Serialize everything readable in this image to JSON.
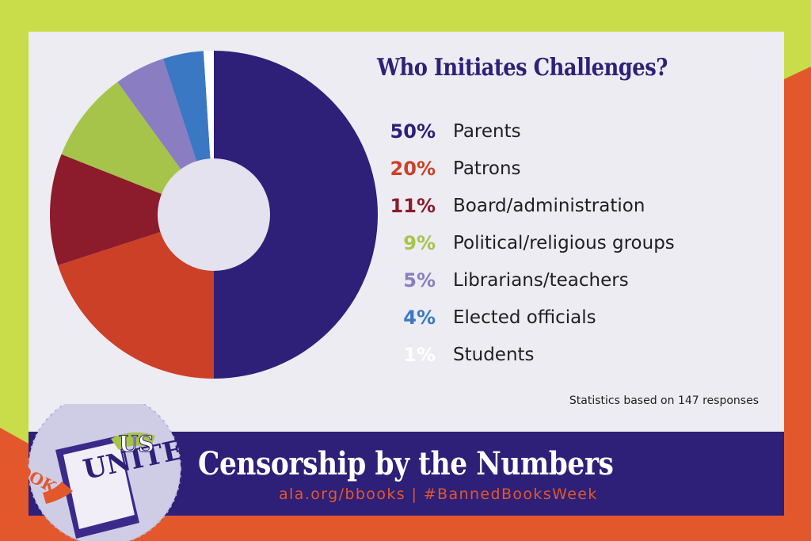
{
  "chart_data": {
    "type": "pie",
    "title": "Who Initiates Challenges?",
    "slices": [
      {
        "label": "Parents",
        "value": 50,
        "pct_label": "50%",
        "color": "#2e1f78"
      },
      {
        "label": "Patrons",
        "value": 20,
        "pct_label": "20%",
        "color": "#cc4028"
      },
      {
        "label": "Board/administration",
        "value": 11,
        "pct_label": "11%",
        "color": "#8c1b2c"
      },
      {
        "label": "Political/religious groups",
        "value": 9,
        "pct_label": "9%",
        "color": "#a6c44a"
      },
      {
        "label": "Librarians/teachers",
        "value": 5,
        "pct_label": "5%",
        "color": "#8a7dc2"
      },
      {
        "label": "Elected officials",
        "value": 4,
        "pct_label": "4%",
        "color": "#3a78c4"
      },
      {
        "label": "Students",
        "value": 1,
        "pct_label": "1%",
        "color": "#ffffff"
      }
    ],
    "footnote": "Statistics based on 147 responses"
  },
  "banner": {
    "title": "Censorship by the Numbers",
    "url": "ala.org/bbooks   |   #BannedBooksWeek"
  },
  "logo": {
    "words": [
      "US",
      "UNITE",
      "BOOKS"
    ]
  },
  "colors": {
    "lime": "#c9dc4a",
    "orange": "#e2582c",
    "navy": "#2e1f78",
    "card": "#ececf2"
  }
}
